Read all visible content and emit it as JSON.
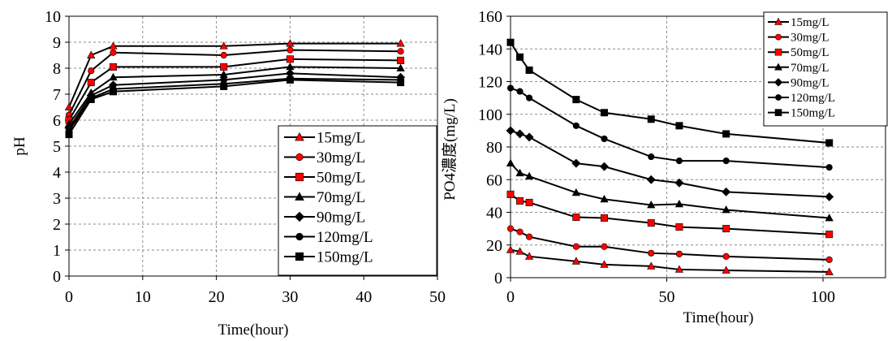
{
  "chart_data": [
    {
      "type": "line",
      "title": "",
      "xlabel": "Time(hour)",
      "ylabel": "pH",
      "xlim": [
        0,
        50
      ],
      "ylim": [
        0,
        10
      ],
      "xticks": [
        0,
        10,
        20,
        30,
        40,
        50
      ],
      "yticks": [
        0,
        1,
        2,
        3,
        4,
        5,
        6,
        7,
        8,
        9,
        10
      ],
      "grid": true,
      "legend_position": "lower-right",
      "series": [
        {
          "name": "15mg/L",
          "marker": "triangle",
          "color": "#ff0000",
          "x": [
            0,
            3,
            6,
            21,
            30,
            45
          ],
          "y": [
            6.5,
            8.5,
            8.85,
            8.85,
            8.95,
            8.95
          ]
        },
        {
          "name": "30mg/L",
          "marker": "circle",
          "color": "#ff0000",
          "x": [
            0,
            3,
            6,
            21,
            30,
            45
          ],
          "y": [
            6.2,
            7.9,
            8.6,
            8.5,
            8.7,
            8.65
          ]
        },
        {
          "name": "50mg/L",
          "marker": "square",
          "color": "#ff0000",
          "x": [
            0,
            3,
            6,
            21,
            30,
            45
          ],
          "y": [
            6.0,
            7.45,
            8.05,
            8.05,
            8.35,
            8.3
          ]
        },
        {
          "name": "70mg/L",
          "marker": "triangle",
          "color": "#000000",
          "x": [
            0,
            3,
            6,
            21,
            30,
            45
          ],
          "y": [
            5.85,
            7.05,
            7.65,
            7.75,
            8.05,
            8.0
          ]
        },
        {
          "name": "90mg/L",
          "marker": "diamond",
          "color": "#000000",
          "x": [
            0,
            3,
            6,
            21,
            30,
            45
          ],
          "y": [
            5.7,
            6.95,
            7.35,
            7.55,
            7.8,
            7.65
          ]
        },
        {
          "name": "120mg/L",
          "marker": "circle",
          "color": "#000000",
          "x": [
            0,
            3,
            6,
            21,
            30,
            45
          ],
          "y": [
            5.6,
            6.85,
            7.2,
            7.4,
            7.6,
            7.55
          ]
        },
        {
          "name": "150mg/L",
          "marker": "square",
          "color": "#000000",
          "x": [
            0,
            3,
            6,
            21,
            30,
            45
          ],
          "y": [
            5.45,
            6.8,
            7.1,
            7.3,
            7.55,
            7.45
          ]
        }
      ]
    },
    {
      "type": "line",
      "title": "",
      "xlabel": "Time(hour)",
      "ylabel": "PO4濃度(mg/L)",
      "xlim": [
        0,
        120
      ],
      "ylim": [
        0,
        160
      ],
      "xticks": [
        0,
        50,
        100
      ],
      "yticks": [
        0,
        20,
        40,
        60,
        80,
        100,
        120,
        140,
        160
      ],
      "grid": true,
      "legend_position": "top-right",
      "series": [
        {
          "name": "15mg/L",
          "marker": "triangle",
          "color": "#ff0000",
          "x": [
            0,
            3,
            6,
            21,
            30,
            45,
            54,
            69,
            102
          ],
          "y": [
            17,
            16,
            13,
            10,
            8,
            7,
            5,
            4.5,
            3.5
          ]
        },
        {
          "name": "30mg/L",
          "marker": "circle",
          "color": "#ff0000",
          "x": [
            0,
            3,
            6,
            21,
            30,
            45,
            54,
            69,
            102
          ],
          "y": [
            30,
            28,
            25,
            19,
            19,
            15,
            14.5,
            13,
            11
          ]
        },
        {
          "name": "50mg/L",
          "marker": "square",
          "color": "#ff0000",
          "x": [
            0,
            3,
            6,
            21,
            30,
            45,
            54,
            69,
            102
          ],
          "y": [
            51,
            47,
            46,
            37,
            36.5,
            33.5,
            31,
            30,
            26.5
          ]
        },
        {
          "name": "70mg/L",
          "marker": "triangle",
          "color": "#000000",
          "x": [
            0,
            3,
            6,
            21,
            30,
            45,
            54,
            69,
            102
          ],
          "y": [
            70,
            64,
            62,
            52,
            48,
            44.5,
            45,
            41.5,
            36.5
          ]
        },
        {
          "name": "90mg/L",
          "marker": "diamond",
          "color": "#000000",
          "x": [
            0,
            3,
            6,
            21,
            30,
            45,
            54,
            69,
            102
          ],
          "y": [
            90,
            88,
            86,
            70,
            68,
            60,
            58,
            52.5,
            49.5
          ]
        },
        {
          "name": "120mg/L",
          "marker": "circle",
          "color": "#000000",
          "x": [
            0,
            3,
            6,
            21,
            30,
            45,
            54,
            69,
            102
          ],
          "y": [
            116,
            114,
            110,
            93,
            85,
            74,
            71.5,
            71.5,
            67.5
          ]
        },
        {
          "name": "150mg/L",
          "marker": "square",
          "color": "#000000",
          "x": [
            0,
            3,
            6,
            21,
            30,
            45,
            54,
            69,
            102
          ],
          "y": [
            144,
            135,
            127,
            109,
            101,
            97,
            93,
            88,
            82.5
          ]
        }
      ]
    }
  ]
}
